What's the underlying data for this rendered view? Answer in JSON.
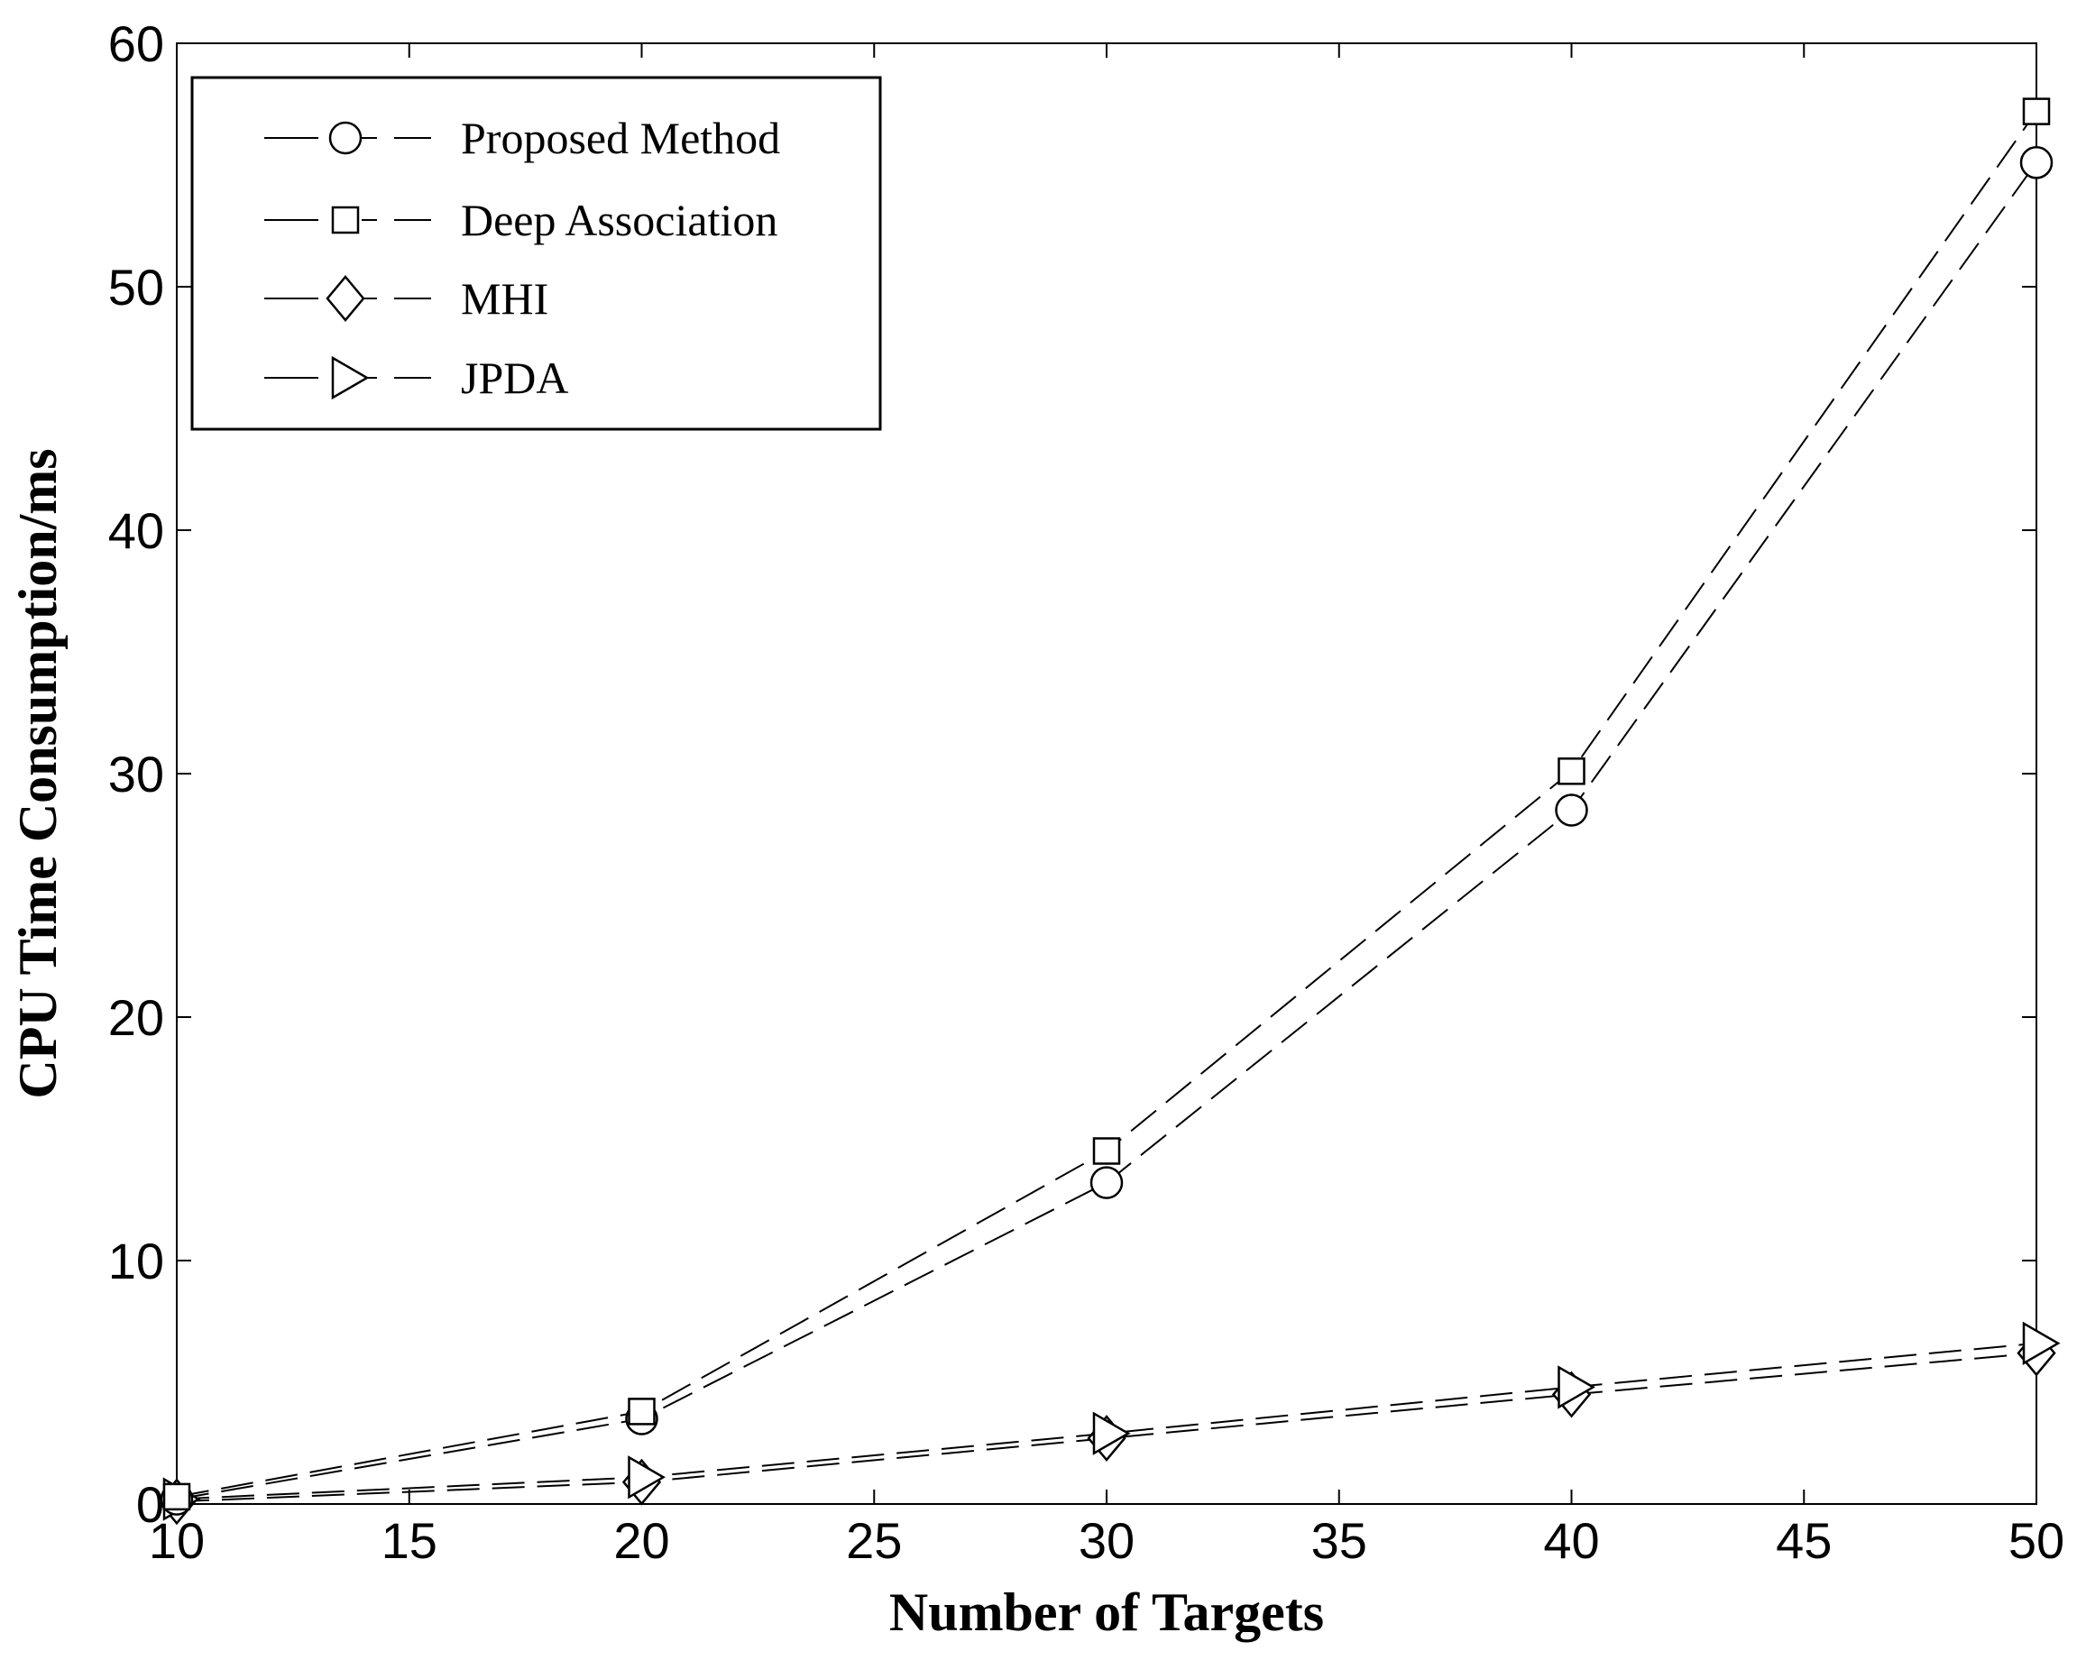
{
  "chart_data": {
    "type": "line",
    "xlabel": "Number of Targets",
    "ylabel": "CPU Time Consumption/ms",
    "xlim": [
      10,
      50
    ],
    "ylim": [
      0,
      60
    ],
    "xticks": [
      10,
      15,
      20,
      25,
      30,
      35,
      40,
      45,
      50
    ],
    "yticks": [
      0,
      10,
      20,
      30,
      40,
      50,
      60
    ],
    "grid": false,
    "legend_position": "top-left",
    "x": [
      10,
      20,
      30,
      40,
      50
    ],
    "series": [
      {
        "name": "Proposed Method",
        "marker": "circle",
        "line_style": "dashed",
        "color": "#000000",
        "values": [
          0.2,
          3.5,
          13.2,
          28.5,
          55.1
        ]
      },
      {
        "name": "Deep Association",
        "marker": "square",
        "line_style": "dashed",
        "color": "#000000",
        "values": [
          0.3,
          3.8,
          14.5,
          30.1,
          57.2
        ]
      },
      {
        "name": "MHI",
        "marker": "diamond",
        "line_style": "dashed",
        "color": "#000000",
        "values": [
          0.1,
          0.9,
          2.7,
          4.5,
          6.2
        ]
      },
      {
        "name": "JPDA",
        "marker": "triangle-right",
        "line_style": "dashed",
        "color": "#000000",
        "values": [
          0.2,
          1.1,
          2.9,
          4.8,
          6.6
        ]
      }
    ]
  }
}
